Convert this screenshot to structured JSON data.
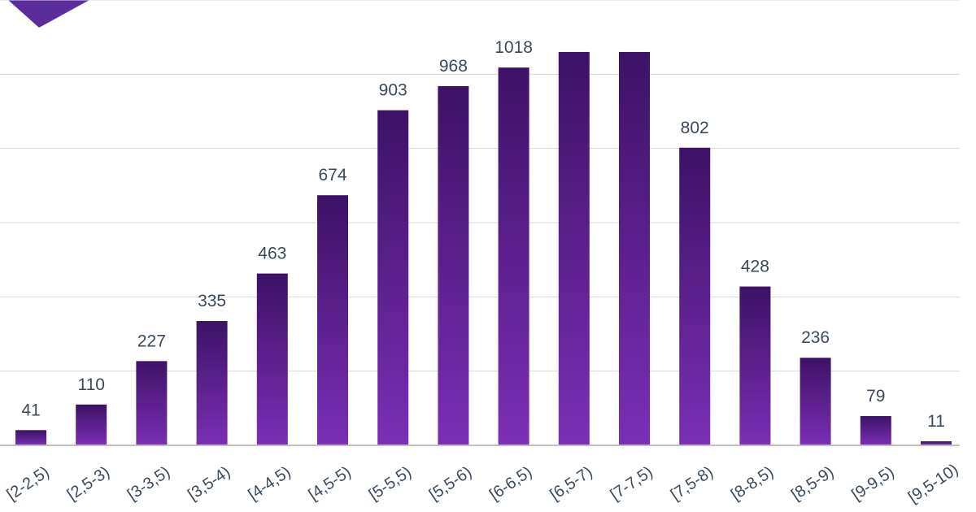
{
  "chart_data": {
    "type": "bar",
    "title": "",
    "xlabel": "",
    "ylabel": "",
    "categories": [
      "[2-2,5)",
      "[2,5-3)",
      "[3-3,5)",
      "[3,5-4)",
      "[4-4,5)",
      "[4,5-5)",
      "[5-5,5)",
      "[5,5-6)",
      "[6-6,5)",
      "[6,5-7)",
      "[7-7,5)",
      "[7,5-8)",
      "[8-8,5)",
      "[8,5-9)",
      "[9-9,5)",
      "[9,5-10)"
    ],
    "values": [
      41,
      110,
      227,
      335,
      463,
      674,
      903,
      968,
      1018,
      1060,
      1060,
      802,
      428,
      236,
      79,
      11
    ],
    "data_labels": [
      "41",
      "110",
      "227",
      "335",
      "463",
      "674",
      "903",
      "968",
      "1018",
      "",
      "",
      "802",
      "428",
      "236",
      "79",
      "11"
    ],
    "ylim": [
      0,
      1200
    ],
    "grid": true,
    "legend": "none",
    "colors": {
      "bar_top": "#3d1266",
      "bar_bottom": "#7a2fb5",
      "corner_accent": "#5a2d9a"
    }
  }
}
